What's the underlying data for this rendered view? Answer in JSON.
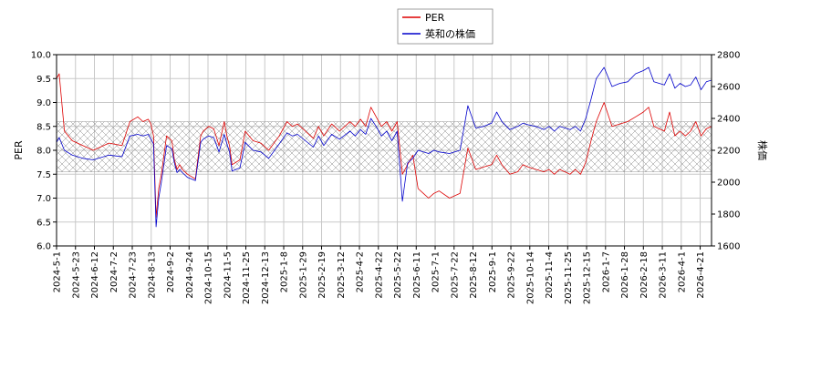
{
  "chart_data": {
    "type": "line",
    "title": "",
    "xlabel": "",
    "ylabel_left": "PER",
    "ylabel_right": "株価",
    "ylim_left": [
      6.0,
      10.0
    ],
    "ylim_right": [
      1600,
      2800
    ],
    "yticks_left": [
      "6.0",
      "6.5",
      "7.0",
      "7.5",
      "8.0",
      "8.5",
      "9.0",
      "9.5",
      "10.0"
    ],
    "yticks_right": [
      "1600",
      "1800",
      "2000",
      "2200",
      "2400",
      "2600",
      "2800"
    ],
    "xticks": [
      "2024-5-1",
      "2024-5-23",
      "2024-6-12",
      "2024-7-2",
      "2024-7-23",
      "2024-8-13",
      "2024-9-2",
      "2024-9-24",
      "2024-10-15",
      "2024-11-5",
      "2024-11-25",
      "2024-12-13",
      "2025-1-8",
      "2025-1-29",
      "2025-2-19",
      "2025-3-12",
      "2025-4-2",
      "2025-4-22",
      "2025-5-22",
      "2025-6-11",
      "2025-7-1",
      "2025-7-22",
      "2025-8-12",
      "2025-9-1",
      "2025-9-22",
      "2025-10-14",
      "2025-11-4",
      "2025-11-25",
      "2025-12-15",
      "2026-1-7",
      "2026-1-28",
      "2026-2-18",
      "2026-3-11",
      "2026-4-1",
      "2026-4-21"
    ],
    "band_left": [
      7.55,
      8.6
    ],
    "grid": true,
    "legend_position": "top-center",
    "series": [
      {
        "name": "PER",
        "axis": "left",
        "color": "#dd0000",
        "x": [
          0,
          1,
          3,
          6,
          10,
          14,
          20,
          25,
          28,
          31,
          33,
          35,
          36,
          37,
          38,
          39,
          40,
          42,
          44,
          45,
          46,
          47,
          48,
          50,
          53,
          55,
          56,
          58,
          60,
          62,
          64,
          65,
          66,
          67,
          70,
          72,
          75,
          78,
          81,
          85,
          88,
          90,
          92,
          95,
          98,
          100,
          102,
          105,
          108,
          112,
          114,
          116,
          118,
          120,
          122,
          124,
          126,
          128,
          130,
          132,
          134,
          136,
          138,
          140,
          142,
          144,
          146,
          150,
          154,
          157,
          160,
          163,
          166,
          168,
          170,
          173,
          176,
          178,
          180,
          183,
          186,
          188,
          190,
          192,
          194,
          196,
          198,
          200,
          202,
          204,
          206,
          209,
          212,
          215,
          218,
          221,
          224,
          226,
          228,
          230,
          232,
          234,
          236,
          238,
          240,
          242,
          244,
          246,
          248,
          250
        ],
        "values": [
          9.5,
          9.6,
          8.4,
          8.2,
          8.1,
          8.0,
          8.15,
          8.1,
          8.6,
          8.7,
          8.6,
          8.65,
          8.55,
          8.3,
          6.6,
          7.2,
          7.5,
          8.3,
          8.2,
          7.8,
          7.6,
          7.7,
          7.6,
          7.5,
          7.4,
          8.3,
          8.4,
          8.5,
          8.45,
          8.1,
          8.6,
          8.3,
          8.1,
          7.7,
          7.8,
          8.4,
          8.2,
          8.15,
          8.0,
          8.3,
          8.6,
          8.5,
          8.55,
          8.4,
          8.25,
          8.5,
          8.3,
          8.55,
          8.4,
          8.6,
          8.5,
          8.65,
          8.5,
          8.9,
          8.7,
          8.5,
          8.6,
          8.4,
          8.6,
          7.5,
          7.7,
          7.9,
          7.2,
          7.1,
          7.0,
          7.1,
          7.15,
          7.0,
          7.1,
          8.05,
          7.6,
          7.65,
          7.7,
          7.9,
          7.7,
          7.5,
          7.55,
          7.7,
          7.65,
          7.6,
          7.55,
          7.6,
          7.5,
          7.6,
          7.55,
          7.5,
          7.6,
          7.5,
          7.75,
          8.2,
          8.6,
          9.0,
          8.5,
          8.55,
          8.6,
          8.7,
          8.8,
          8.9,
          8.5,
          8.45,
          8.4,
          8.8,
          8.3,
          8.4,
          8.3,
          8.4,
          8.6,
          8.3,
          8.45,
          8.5
        ]
      },
      {
        "name": "英和の株価",
        "axis": "right",
        "color": "#0000cc",
        "x": [
          0,
          1,
          3,
          6,
          10,
          14,
          20,
          25,
          28,
          31,
          33,
          35,
          36,
          37,
          38,
          39,
          40,
          42,
          44,
          45,
          46,
          47,
          48,
          50,
          53,
          55,
          56,
          58,
          60,
          62,
          64,
          65,
          66,
          67,
          70,
          72,
          75,
          78,
          81,
          85,
          88,
          90,
          92,
          95,
          98,
          100,
          102,
          105,
          108,
          112,
          114,
          116,
          118,
          120,
          122,
          124,
          126,
          128,
          130,
          132,
          134,
          136,
          138,
          140,
          142,
          144,
          146,
          150,
          154,
          157,
          160,
          163,
          166,
          168,
          170,
          173,
          176,
          178,
          180,
          183,
          186,
          188,
          190,
          192,
          194,
          196,
          198,
          200,
          202,
          204,
          206,
          209,
          212,
          215,
          218,
          221,
          224,
          226,
          228,
          230,
          232,
          234,
          236,
          238,
          240,
          242,
          244,
          246,
          248,
          250
        ],
        "values": [
          2250,
          2280,
          2200,
          2170,
          2150,
          2140,
          2170,
          2160,
          2290,
          2300,
          2290,
          2300,
          2270,
          2240,
          1720,
          1900,
          2000,
          2230,
          2210,
          2120,
          2060,
          2080,
          2060,
          2030,
          2010,
          2250,
          2270,
          2290,
          2280,
          2190,
          2300,
          2240,
          2190,
          2070,
          2090,
          2250,
          2200,
          2190,
          2150,
          2240,
          2310,
          2290,
          2300,
          2260,
          2220,
          2290,
          2230,
          2300,
          2270,
          2320,
          2290,
          2330,
          2300,
          2400,
          2350,
          2290,
          2320,
          2260,
          2320,
          1880,
          2120,
          2150,
          2200,
          2190,
          2180,
          2200,
          2190,
          2180,
          2200,
          2480,
          2340,
          2350,
          2370,
          2440,
          2380,
          2330,
          2350,
          2370,
          2360,
          2350,
          2330,
          2350,
          2320,
          2350,
          2340,
          2330,
          2350,
          2320,
          2400,
          2520,
          2650,
          2720,
          2600,
          2620,
          2630,
          2680,
          2700,
          2720,
          2630,
          2620,
          2610,
          2680,
          2590,
          2620,
          2600,
          2610,
          2660,
          2580,
          2630,
          2640
        ]
      }
    ]
  }
}
